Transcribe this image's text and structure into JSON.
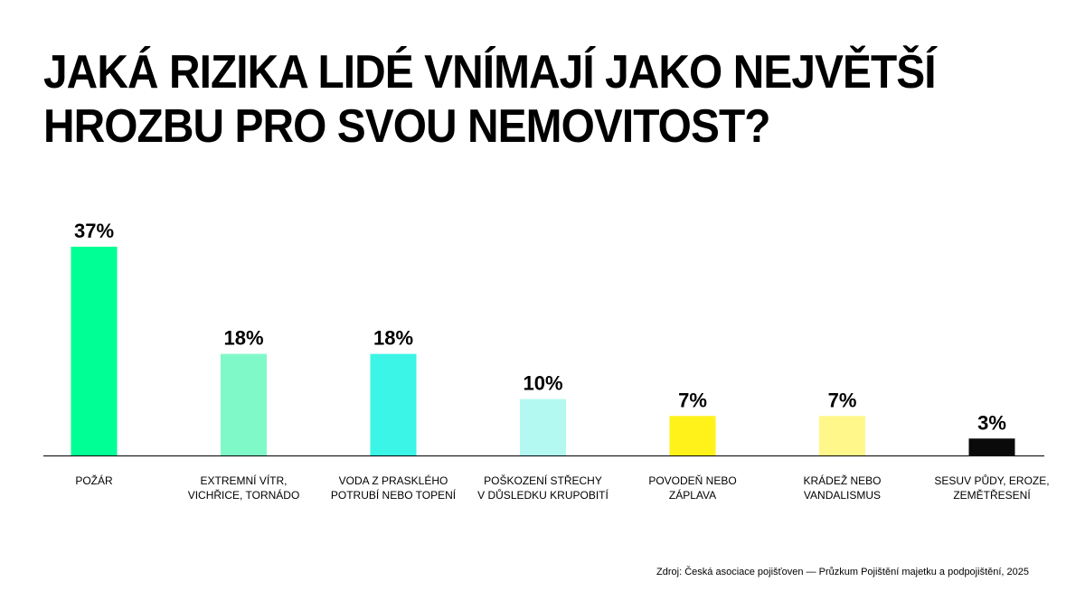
{
  "title_lines": [
    "JAKÁ RIZIKA LIDÉ VNÍMAJÍ JAKO NEJVĚTŠÍ",
    "HROZBU PRO SVOU NEMOVITOST?"
  ],
  "source": "Zdroj: Česká asociace pojišťoven — Průzkum Pojištění majetku a podpojištění, 2025",
  "chart_data": {
    "type": "bar",
    "title": "JAKÁ RIZIKA LIDÉ VNÍMAJÍ JAKO NEJVĚTŠÍ HROZBU PRO SVOU NEMOVITOST?",
    "categories": [
      [
        "POŽÁR"
      ],
      [
        "EXTREMNÍ  VÍTR,",
        "VICHŘICE, TORNÁDO"
      ],
      [
        "VODA Z PRASKLÉHO",
        "POTRUBÍ NEBO TOPENÍ"
      ],
      [
        "POŠKOZENÍ STŘECHY",
        "V DŮSLEDKU KRUPOBITÍ"
      ],
      [
        "POVODEŇ NEBO",
        "ZÁPLAVA"
      ],
      [
        "KRÁDEŽ NEBO",
        "VANDALISMUS"
      ],
      [
        "SESUV PŮDY, EROZE,",
        "ZEMĚTŘESENÍ"
      ]
    ],
    "values": [
      37,
      18,
      18,
      10,
      7,
      7,
      3
    ],
    "value_labels": [
      "37%",
      "18%",
      "18%",
      "10%",
      "7%",
      "7%",
      "3%"
    ],
    "colors": [
      "#00FF94",
      "#80F9C8",
      "#3BF5E6",
      "#B3F8F1",
      "#FFF21A",
      "#FFF78A",
      "#0A0A0A"
    ],
    "ylim": [
      0,
      37
    ],
    "xlabel": "",
    "ylabel": "",
    "grid": false,
    "legend": "none"
  }
}
